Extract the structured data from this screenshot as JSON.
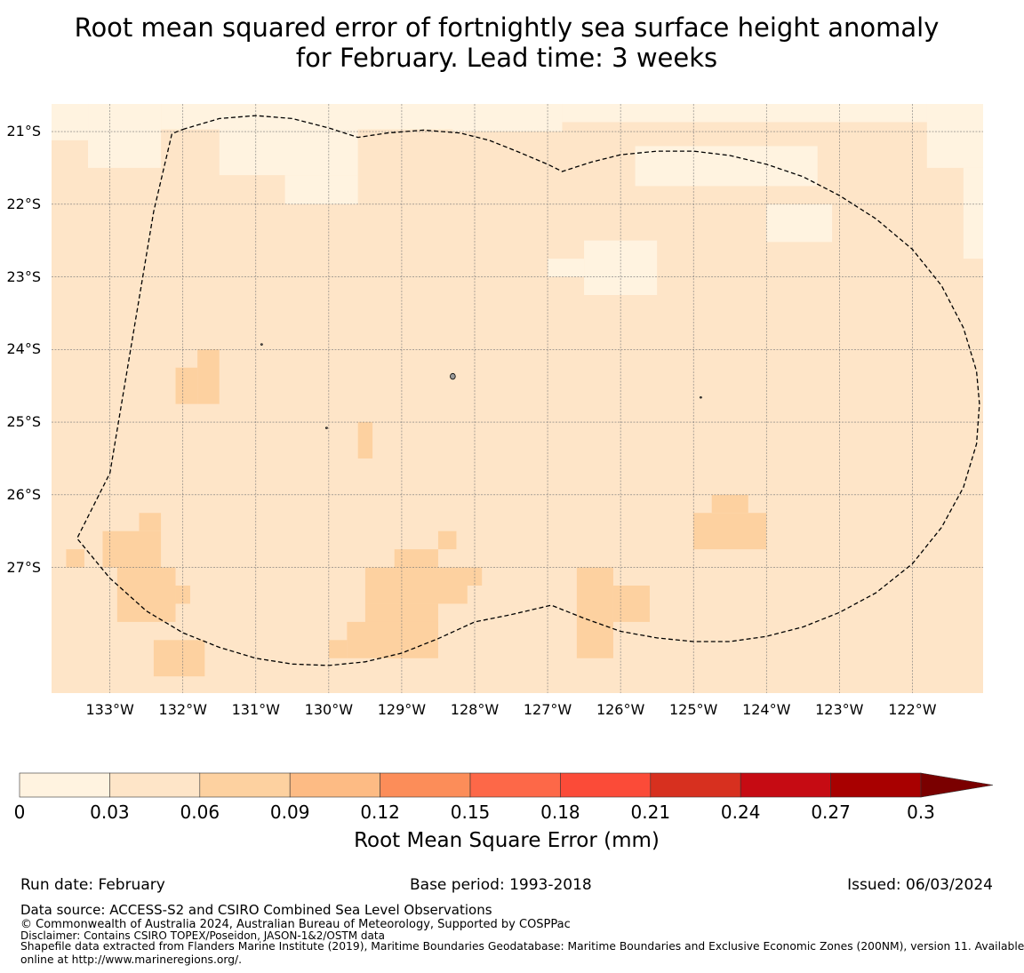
{
  "title": {
    "line1": "Root mean squared error of fortnightly sea surface height anomaly",
    "line2": "for February. Lead time: 3 weeks"
  },
  "map": {
    "lat_labels": [
      "21°S",
      "22°S",
      "23°S",
      "24°S",
      "25°S",
      "26°S",
      "27°S"
    ],
    "lon_labels": [
      "133°W",
      "132°W",
      "131°W",
      "130°W",
      "129°W",
      "128°W",
      "127°W",
      "126°W",
      "125°W",
      "124°W",
      "123°W",
      "122°W"
    ],
    "extent": {
      "lon_west": 133.8,
      "lon_east": 121.03,
      "lat_north": 20.62,
      "lat_south": 28.73
    },
    "base_bin": "0.03-0.06",
    "cells_0_to_0.03": [
      {
        "lon_w": 133.8,
        "lon_e": 133.3,
        "lat_n": 20.62,
        "lat_s": 21.12
      },
      {
        "lon_w": 133.3,
        "lon_e": 132.3,
        "lat_n": 20.62,
        "lat_s": 21.5
      },
      {
        "lon_w": 132.3,
        "lon_e": 128.2,
        "lat_n": 20.62,
        "lat_s": 20.97
      },
      {
        "lon_w": 131.5,
        "lon_e": 129.6,
        "lat_n": 20.97,
        "lat_s": 21.6
      },
      {
        "lon_w": 130.6,
        "lon_e": 129.6,
        "lat_n": 21.6,
        "lat_s": 22.0
      },
      {
        "lon_w": 128.3,
        "lon_e": 126.8,
        "lat_n": 20.62,
        "lat_s": 21.0
      },
      {
        "lon_w": 126.8,
        "lon_e": 121.03,
        "lat_n": 20.62,
        "lat_s": 20.87
      },
      {
        "lon_w": 125.8,
        "lon_e": 123.3,
        "lat_n": 21.2,
        "lat_s": 21.75
      },
      {
        "lon_w": 124.0,
        "lon_e": 123.1,
        "lat_n": 22.0,
        "lat_s": 22.52
      },
      {
        "lon_w": 126.5,
        "lon_e": 125.5,
        "lat_n": 22.5,
        "lat_s": 23.25
      },
      {
        "lon_w": 127.0,
        "lon_e": 126.5,
        "lat_n": 22.75,
        "lat_s": 23.0
      },
      {
        "lon_w": 121.8,
        "lon_e": 121.03,
        "lat_n": 20.62,
        "lat_s": 21.5
      },
      {
        "lon_w": 121.3,
        "lon_e": 121.03,
        "lat_n": 21.5,
        "lat_s": 22.75
      }
    ],
    "cells_0.06_to_0.09": [
      {
        "lon_w": 131.8,
        "lon_e": 131.5,
        "lat_n": 24.0,
        "lat_s": 24.75
      },
      {
        "lon_w": 132.1,
        "lon_e": 131.8,
        "lat_n": 24.25,
        "lat_s": 24.75
      },
      {
        "lon_w": 129.6,
        "lon_e": 129.4,
        "lat_n": 25.0,
        "lat_s": 25.5
      },
      {
        "lon_w": 125.0,
        "lon_e": 124.0,
        "lat_n": 26.25,
        "lat_s": 26.75
      },
      {
        "lon_w": 124.75,
        "lon_e": 124.25,
        "lat_n": 26.0,
        "lat_s": 26.25
      },
      {
        "lon_w": 133.1,
        "lon_e": 132.3,
        "lat_n": 26.5,
        "lat_s": 27.0
      },
      {
        "lon_w": 132.9,
        "lon_e": 132.1,
        "lat_n": 27.0,
        "lat_s": 27.75
      },
      {
        "lon_w": 132.1,
        "lon_e": 131.9,
        "lat_n": 27.25,
        "lat_s": 27.5
      },
      {
        "lon_w": 132.6,
        "lon_e": 132.3,
        "lat_n": 26.25,
        "lat_s": 26.5
      },
      {
        "lon_w": 133.6,
        "lon_e": 133.35,
        "lat_n": 26.75,
        "lat_s": 27.0
      },
      {
        "lon_w": 132.4,
        "lon_e": 131.7,
        "lat_n": 28.0,
        "lat_s": 28.5
      },
      {
        "lon_w": 129.5,
        "lon_e": 128.1,
        "lat_n": 27.0,
        "lat_s": 27.5
      },
      {
        "lon_w": 129.1,
        "lon_e": 128.5,
        "lat_n": 26.75,
        "lat_s": 27.0
      },
      {
        "lon_w": 128.5,
        "lon_e": 128.25,
        "lat_n": 26.5,
        "lat_s": 26.75
      },
      {
        "lon_w": 129.5,
        "lon_e": 128.5,
        "lat_n": 27.5,
        "lat_s": 28.0
      },
      {
        "lon_w": 128.25,
        "lon_e": 127.9,
        "lat_n": 27.0,
        "lat_s": 27.25
      },
      {
        "lon_w": 129.75,
        "lon_e": 128.5,
        "lat_n": 27.75,
        "lat_s": 28.25
      },
      {
        "lon_w": 130.0,
        "lon_e": 129.75,
        "lat_n": 28.0,
        "lat_s": 28.25
      },
      {
        "lon_w": 126.6,
        "lon_e": 126.1,
        "lat_n": 27.0,
        "lat_s": 28.25
      },
      {
        "lon_w": 126.1,
        "lon_e": 125.6,
        "lat_n": 27.25,
        "lat_s": 27.75
      }
    ],
    "eez_boundary": [
      [
        132.0,
        20.97
      ],
      [
        131.5,
        20.82
      ],
      [
        131.0,
        20.78
      ],
      [
        130.5,
        20.82
      ],
      [
        130.0,
        20.95
      ],
      [
        129.6,
        21.08
      ],
      [
        129.2,
        21.02
      ],
      [
        128.7,
        20.98
      ],
      [
        128.2,
        21.02
      ],
      [
        127.8,
        21.12
      ],
      [
        127.4,
        21.28
      ],
      [
        127.0,
        21.45
      ],
      [
        126.8,
        21.55
      ],
      [
        126.4,
        21.42
      ],
      [
        126.0,
        21.32
      ],
      [
        125.5,
        21.27
      ],
      [
        125.0,
        21.27
      ],
      [
        124.5,
        21.33
      ],
      [
        124.0,
        21.45
      ],
      [
        123.5,
        21.62
      ],
      [
        123.0,
        21.88
      ],
      [
        122.5,
        22.2
      ],
      [
        122.0,
        22.62
      ],
      [
        121.6,
        23.12
      ],
      [
        121.3,
        23.7
      ],
      [
        121.12,
        24.3
      ],
      [
        121.08,
        24.75
      ],
      [
        121.12,
        25.3
      ],
      [
        121.3,
        25.9
      ],
      [
        121.6,
        26.45
      ],
      [
        122.0,
        26.95
      ],
      [
        122.5,
        27.35
      ],
      [
        123.0,
        27.62
      ],
      [
        123.5,
        27.82
      ],
      [
        124.0,
        27.95
      ],
      [
        124.5,
        28.02
      ],
      [
        125.0,
        28.02
      ],
      [
        125.5,
        27.97
      ],
      [
        126.0,
        27.88
      ],
      [
        126.5,
        27.7
      ],
      [
        126.95,
        27.52
      ],
      [
        127.5,
        27.65
      ],
      [
        128.0,
        27.75
      ],
      [
        128.5,
        27.98
      ],
      [
        129.0,
        28.18
      ],
      [
        129.5,
        28.3
      ],
      [
        130.0,
        28.35
      ],
      [
        130.5,
        28.33
      ],
      [
        131.0,
        28.25
      ],
      [
        131.5,
        28.1
      ],
      [
        132.0,
        27.9
      ],
      [
        132.5,
        27.6
      ],
      [
        133.0,
        27.15
      ],
      [
        133.45,
        26.6
      ],
      [
        133.0,
        25.7
      ],
      [
        132.8,
        24.5
      ],
      [
        132.6,
        23.3
      ],
      [
        132.4,
        22.1
      ],
      [
        132.15,
        21.03
      ],
      [
        132.0,
        20.97
      ]
    ],
    "islands": [
      {
        "lon": 128.3,
        "lat": 24.37,
        "rx": 0.035,
        "ry": 0.04
      },
      {
        "lon": 130.92,
        "lat": 23.93,
        "rx": 0.01,
        "ry": 0.01
      },
      {
        "lon": 130.03,
        "lat": 25.08,
        "rx": 0.012,
        "ry": 0.008
      },
      {
        "lon": 124.9,
        "lat": 24.66,
        "rx": 0.012,
        "ry": 0.008
      }
    ]
  },
  "colorbar": {
    "bins": [
      "#fff3e0",
      "#fee5c8",
      "#fdd1a0",
      "#fdbb84",
      "#fc8d59",
      "#fd6848",
      "#fb4b38",
      "#d7301f",
      "#c60b13",
      "#a80000"
    ],
    "extend_color": "#7a0000",
    "ticks": [
      "0",
      "0.03",
      "0.06",
      "0.09",
      "0.12",
      "0.15",
      "0.18",
      "0.21",
      "0.24",
      "0.27",
      "0.3"
    ],
    "label": "Root Mean Square Error (mm)"
  },
  "footer": {
    "run_date": "Run date: February",
    "base_period": "Base period: 1993-2018",
    "issued": "Issued: 06/03/2024",
    "data_source": "Data source: ACCESS-S2 and CSIRO Combined Sea Level Observations",
    "copyright": "© Commonwealth of Australia 2024, Australian Bureau of Meteorology, Supported by COSPPac",
    "disclaimer": "Disclaimer: Contains CSIRO TOPEX/Poseidon, JASON-1&2/OSTM data",
    "shapefile_line1": "Shapefile data extracted from Flanders Marine Institute (2019), Maritime Boundaries Geodatabase: Maritime Boundaries and Exclusive Economic Zones (200NM), version 11. Available",
    "shapefile_line2": "online at http://www.marineregions.org/."
  }
}
